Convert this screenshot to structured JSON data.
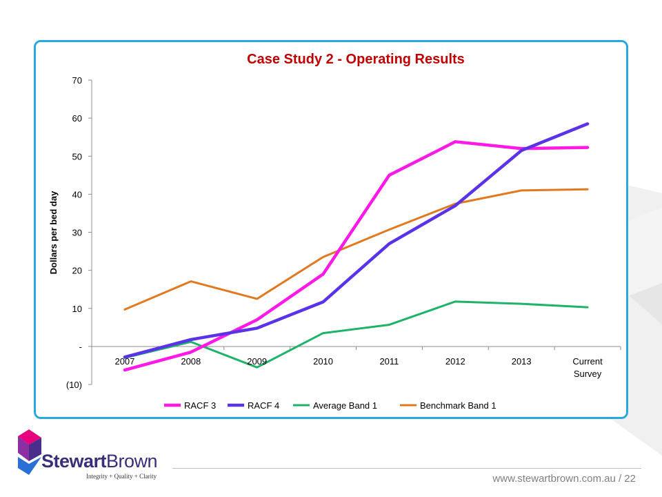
{
  "slide": {
    "url_text": "www.stewartbrown.com.au / 22",
    "logo": {
      "name_part1": "Stewart",
      "name_part2": "Brown",
      "tagline": "Integrity + Quality + Clarity"
    },
    "colors": {
      "frame": "#29a8e0",
      "title": "#c00000"
    }
  },
  "chart_data": {
    "type": "line",
    "title": "Case Study 2 - Operating Results",
    "xlabel": "",
    "ylabel": "Dollars per bed day",
    "categories": [
      "2007",
      "2008",
      "2009",
      "2010",
      "2011",
      "2012",
      "2013",
      "Current Survey"
    ],
    "ylim": [
      -10,
      70
    ],
    "yticks": [
      -10,
      0,
      10,
      20,
      30,
      40,
      50,
      60,
      70
    ],
    "ytick_labels": [
      "(10)",
      "-",
      "10",
      "20",
      "30",
      "40",
      "50",
      "60",
      "70"
    ],
    "grid": false,
    "legend_position": "bottom",
    "series": [
      {
        "name": "RACF 3",
        "color": "#ff19e6",
        "values": [
          -6.2,
          -1.5,
          7.0,
          19.0,
          45.0,
          53.8,
          52.0,
          52.3
        ]
      },
      {
        "name": "RACF 4",
        "color": "#5a32e8",
        "values": [
          -2.8,
          1.8,
          4.8,
          11.7,
          27.0,
          37.0,
          51.5,
          58.5
        ]
      },
      {
        "name": "Average Band 1",
        "color": "#1eb26a",
        "values": [
          -3.0,
          1.2,
          -5.5,
          3.5,
          5.7,
          11.8,
          11.2,
          10.3
        ]
      },
      {
        "name": "Benchmark Band 1",
        "color": "#e2791e",
        "values": [
          9.7,
          17.1,
          12.5,
          23.5,
          30.7,
          37.5,
          41.0,
          41.3
        ]
      }
    ]
  }
}
